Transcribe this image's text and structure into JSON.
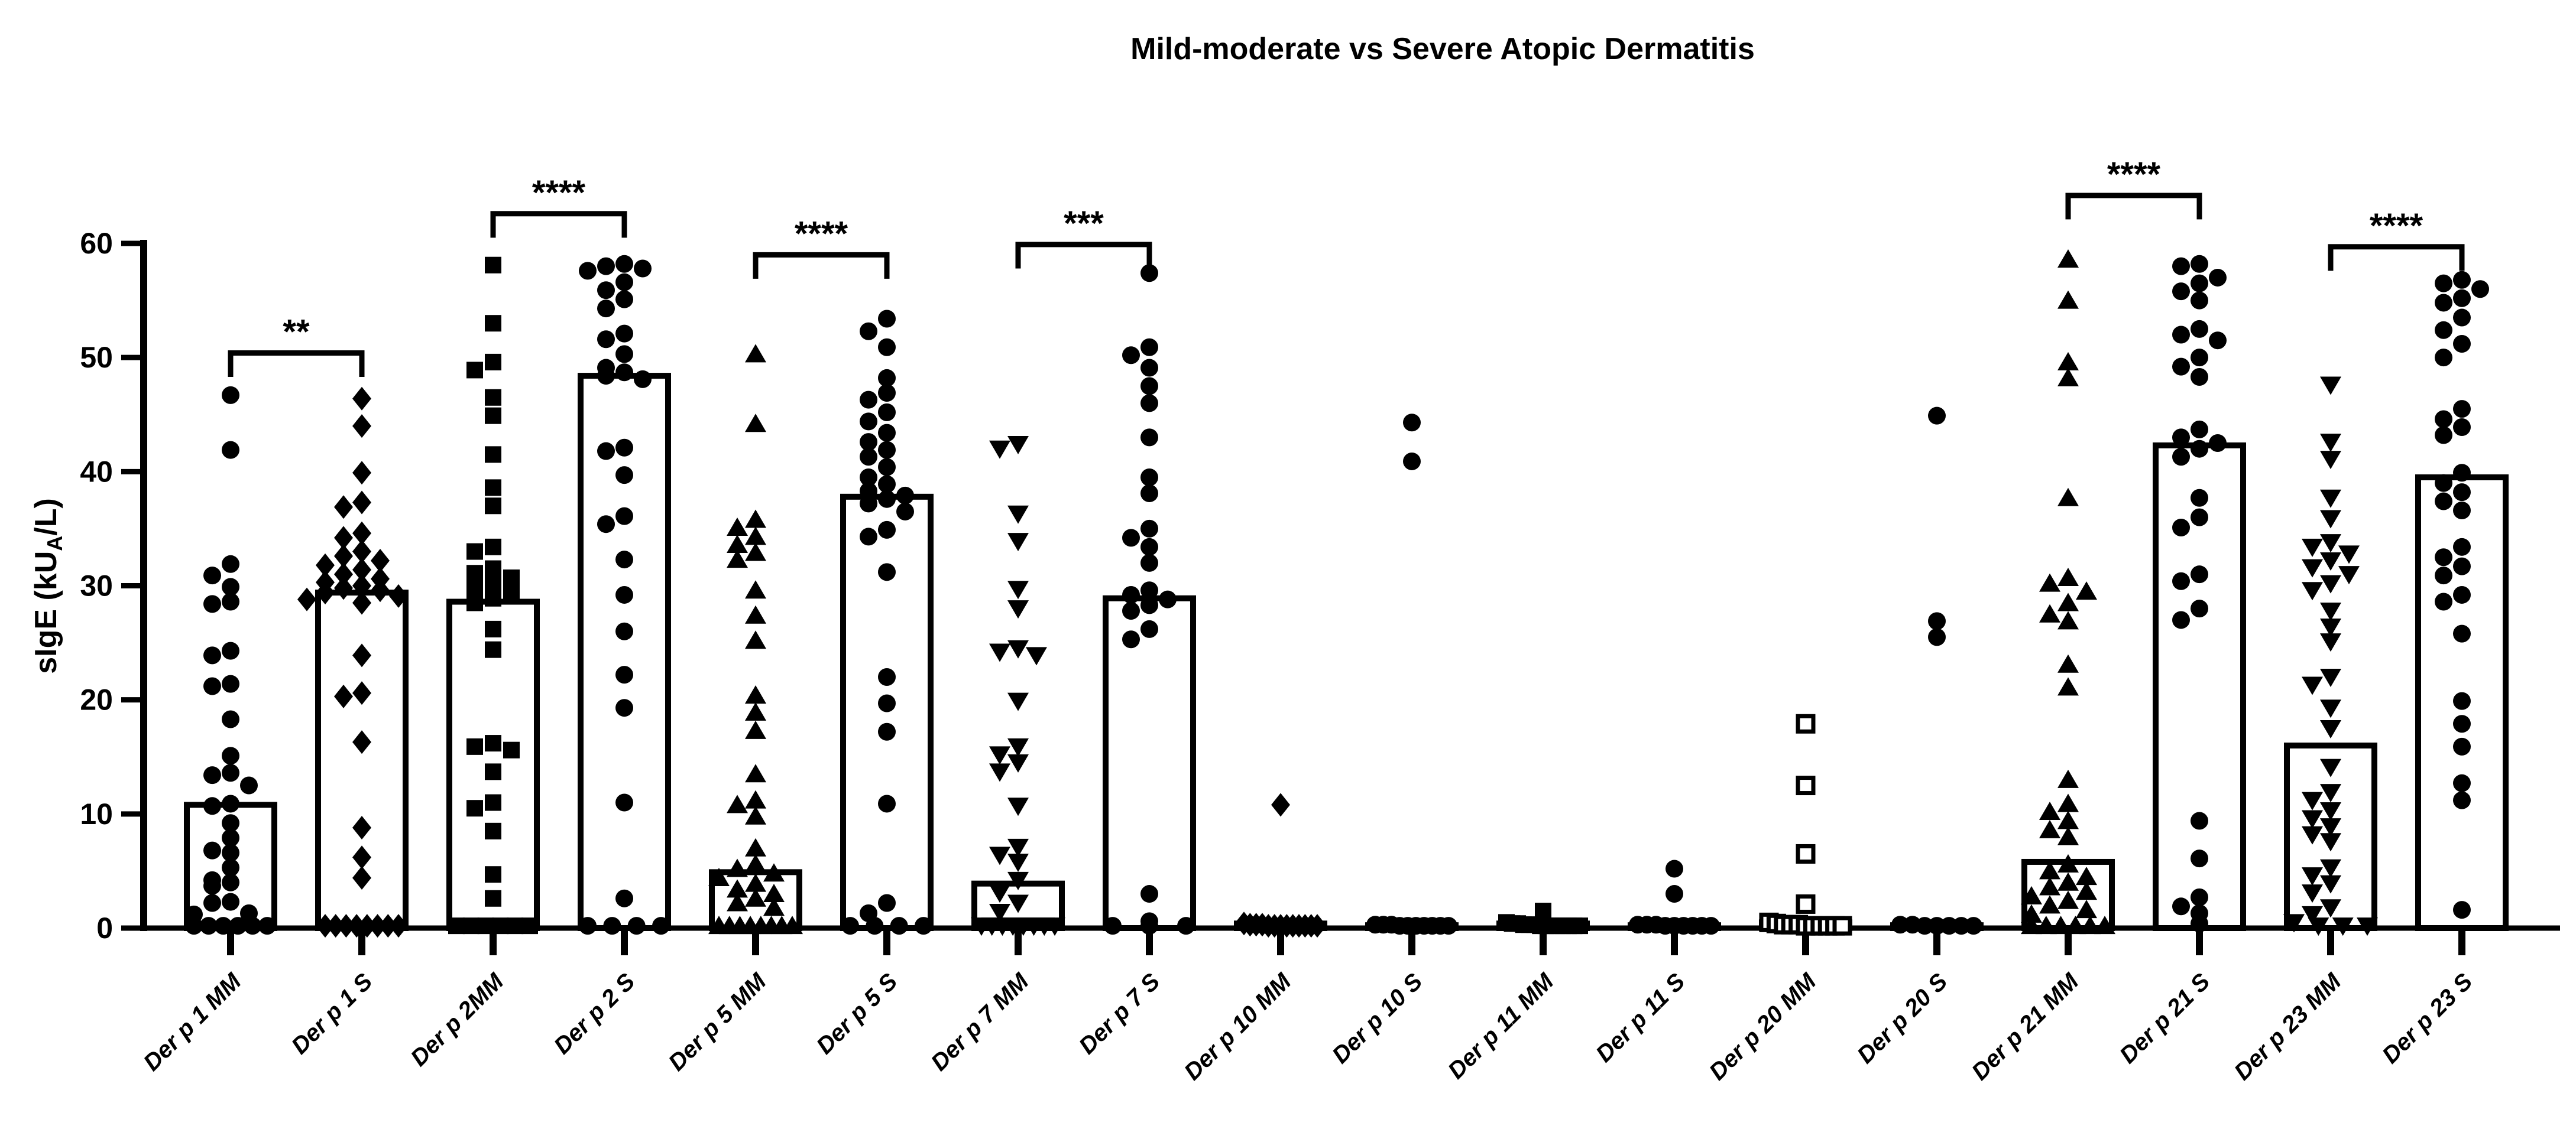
{
  "figure": {
    "background": "#ffffff",
    "ink": "#000000"
  },
  "chart_data": {
    "type": "bar",
    "subtype": "bar-with-scatter-overlay",
    "title": "Mild-moderate vs Severe Atopic Dermatitis",
    "xlabel": "",
    "ylabel": "sIgE (kUA/L)",
    "ylabel_parts": {
      "pre": "sIgE (kU",
      "sub": "A",
      "post": "/L)"
    },
    "ylim": [
      0,
      60
    ],
    "yticks": [
      0,
      10,
      20,
      30,
      40,
      50,
      60
    ],
    "grid": false,
    "legend": "none",
    "bar_fill": "#ffffff",
    "bar_stroke": "#000000",
    "categories": [
      "Der p 1 MM",
      "Der p 1 S",
      "Der p 2MM",
      "Der p 2 S",
      "Der p 5 MM",
      "Der p 5 S",
      "Der p 7 MM",
      "Der p 7 S",
      "Der p 10 MM",
      "Der p 10 S",
      "Der p 11 MM",
      "Der p 11 S",
      "Der p 20 MM",
      "Der p 20 S",
      "Der p 21 MM",
      "Der p 21 S",
      "Der p 23 MM",
      "Der p 23 S"
    ],
    "series": [
      {
        "category": "Der p 1 MM",
        "marker": "circle",
        "bar_mean": 10.8,
        "points": [
          46.7,
          41.9,
          31.9,
          30.9,
          29.9,
          28.6,
          28.4,
          24.3,
          23.9,
          21.4,
          21.2,
          18.3,
          15.1,
          13.6,
          13.4,
          12.5,
          10.9,
          10.7,
          9.2,
          7.9,
          6.8,
          6.6,
          5.3,
          4.2,
          4.0,
          3.7,
          2.3,
          2.2,
          1.3,
          1.2,
          0.2,
          0.2,
          0.2,
          0.2,
          0.2,
          0.2
        ]
      },
      {
        "category": "Der p 1 S",
        "marker": "diamond",
        "bar_mean": 29.4,
        "points": [
          46.4,
          44.0,
          39.9,
          37.3,
          36.9,
          34.6,
          34.2,
          33.0,
          32.6,
          32.2,
          31.8,
          31.4,
          31.0,
          30.6,
          30.3,
          30.0,
          29.8,
          29.6,
          29.4,
          29.1,
          28.8,
          28.5,
          23.9,
          20.6,
          20.3,
          16.3,
          8.8,
          6.2,
          4.4,
          0.2,
          0.2,
          0.2,
          0.2,
          0.2,
          0.2,
          0.2,
          0.2
        ]
      },
      {
        "category": "Der p 2MM",
        "marker": "square",
        "bar_mean": 28.6,
        "points": [
          58.1,
          53.0,
          49.6,
          48.9,
          46.5,
          44.9,
          41.5,
          38.6,
          37.0,
          33.4,
          33.0,
          31.5,
          31.1,
          30.7,
          30.2,
          29.8,
          29.3,
          28.9,
          28.5,
          26.2,
          24.4,
          16.2,
          15.9,
          15.6,
          13.7,
          11.0,
          10.5,
          8.5,
          4.7,
          2.6,
          0.2,
          0.2,
          0.2,
          0.2,
          0.2,
          0.2
        ]
      },
      {
        "category": "Der p 2 S",
        "marker": "circle",
        "bar_mean": 48.4,
        "points": [
          58.2,
          58.0,
          57.8,
          57.6,
          56.6,
          55.9,
          55.1,
          54.3,
          52.1,
          51.6,
          50.3,
          49.1,
          48.7,
          48.4,
          48.1,
          42.1,
          41.8,
          39.7,
          36.1,
          35.4,
          32.3,
          29.2,
          26.0,
          22.2,
          19.3,
          11.0,
          2.6,
          0.2,
          0.2,
          0.2,
          0.2
        ]
      },
      {
        "category": "Der p 5 MM",
        "marker": "triangle-up",
        "bar_mean": 4.9,
        "points": [
          50.3,
          44.2,
          35.8,
          35.1,
          34.3,
          33.6,
          32.9,
          32.3,
          29.6,
          27.4,
          25.2,
          20.4,
          18.9,
          17.3,
          13.5,
          11.2,
          10.8,
          9.8,
          7.0,
          5.6,
          5.2,
          4.8,
          4.4,
          3.9,
          3.4,
          3.0,
          2.6,
          2.2,
          1.8,
          0.2,
          0.2,
          0.2,
          0.2,
          0.2,
          0.2,
          0.2,
          0.2
        ]
      },
      {
        "category": "Der p 5 S",
        "marker": "circle",
        "bar_mean": 37.8,
        "points": [
          53.4,
          52.3,
          50.9,
          48.2,
          46.9,
          46.3,
          45.2,
          44.4,
          43.4,
          42.6,
          41.9,
          41.3,
          40.4,
          39.5,
          38.9,
          38.3,
          37.9,
          37.6,
          37.2,
          36.5,
          34.9,
          34.3,
          31.2,
          22.0,
          19.7,
          17.2,
          10.9,
          2.2,
          1.3,
          0.2,
          0.2,
          0.2,
          0.2
        ]
      },
      {
        "category": "Der p 7 MM",
        "marker": "triangle-down",
        "bar_mean": 3.9,
        "points": [
          42.4,
          42.0,
          36.3,
          33.9,
          29.7,
          28.0,
          24.5,
          24.2,
          23.9,
          19.9,
          15.9,
          15.2,
          14.5,
          13.7,
          10.7,
          7.1,
          6.4,
          5.8,
          4.2,
          3.1,
          2.2,
          1.4,
          0.2,
          0.2,
          0.2,
          0.2,
          0.2,
          0.2,
          0.2,
          0.2
        ]
      },
      {
        "category": "Der p 7 S",
        "marker": "circle",
        "bar_mean": 28.9,
        "points": [
          57.4,
          50.9,
          50.2,
          49.1,
          47.5,
          46.0,
          43.0,
          39.5,
          38.1,
          35.0,
          34.2,
          33.4,
          32.0,
          29.6,
          29.2,
          28.8,
          28.3,
          27.8,
          26.2,
          25.3,
          3.0,
          0.6,
          0.2,
          0.2,
          0.2
        ]
      },
      {
        "category": "Der p 10 MM",
        "marker": "diamond",
        "bar_mean": 0.4,
        "points": [
          10.8,
          0.4,
          0.3,
          0.3,
          0.3,
          0.2,
          0.2,
          0.2,
          0.2,
          0.2,
          0.2,
          0.2,
          0.2,
          0.2
        ]
      },
      {
        "category": "Der p 10 S",
        "marker": "circle",
        "bar_mean": 0.25,
        "points": [
          44.3,
          40.9,
          0.3,
          0.3,
          0.3,
          0.2,
          0.2,
          0.2,
          0.2,
          0.2,
          0.2,
          0.2
        ]
      },
      {
        "category": "Der p 11 MM",
        "marker": "square",
        "bar_mean": 0.4,
        "points": [
          1.5,
          0.5,
          0.4,
          0.4,
          0.3,
          0.3,
          0.3,
          0.2,
          0.2,
          0.2,
          0.2,
          0.2,
          0.2,
          0.2,
          0.2
        ]
      },
      {
        "category": "Der p 11 S",
        "marker": "circle",
        "bar_mean": 0.25,
        "points": [
          5.2,
          3.0,
          0.3,
          0.3,
          0.3,
          0.2,
          0.2,
          0.2,
          0.2,
          0.2,
          0.2
        ]
      },
      {
        "category": "Der p 20 MM",
        "marker": "square-open",
        "bar_mean": 0.5,
        "points": [
          17.9,
          12.5,
          6.5,
          2.1,
          0.5,
          0.4,
          0.3,
          0.3,
          0.3,
          0.2,
          0.2,
          0.2,
          0.2,
          0.2,
          0.2
        ]
      },
      {
        "category": "Der p 20 S",
        "marker": "circle",
        "bar_mean": 0.25,
        "points": [
          44.9,
          26.9,
          25.5,
          0.3,
          0.3,
          0.2,
          0.2,
          0.2,
          0.2,
          0.2
        ]
      },
      {
        "category": "Der p 21 MM",
        "marker": "triangle-up",
        "bar_mean": 5.8,
        "points": [
          58.6,
          55.0,
          49.6,
          48.2,
          37.7,
          30.7,
          30.2,
          29.5,
          28.5,
          27.5,
          26.9,
          23.1,
          21.1,
          13.0,
          10.9,
          10.2,
          9.4,
          8.6,
          8.0,
          5.6,
          5.0,
          4.5,
          4.0,
          3.6,
          3.2,
          2.8,
          2.4,
          2.0,
          1.6,
          1.2,
          0.2,
          0.2,
          0.2,
          0.2,
          0.2,
          0.2
        ]
      },
      {
        "category": "Der p 21 S",
        "marker": "circle",
        "bar_mean": 42.3,
        "points": [
          58.2,
          58.0,
          57.0,
          56.5,
          55.8,
          55.0,
          52.5,
          52.0,
          51.5,
          50.0,
          49.2,
          48.3,
          43.7,
          43.0,
          42.5,
          42.0,
          41.3,
          37.7,
          36.0,
          35.1,
          31.0,
          30.4,
          28.0,
          27.0,
          9.4,
          6.1,
          2.7,
          1.9,
          1.3,
          0.4
        ]
      },
      {
        "category": "Der p 23 MM",
        "marker": "triangle-down",
        "bar_mean": 16.0,
        "points": [
          47.6,
          42.6,
          41.1,
          37.7,
          35.9,
          33.8,
          33.4,
          32.8,
          32.2,
          31.6,
          31.0,
          30.2,
          29.6,
          27.8,
          26.4,
          25.1,
          22.0,
          21.3,
          19.3,
          17.5,
          14.1,
          11.9,
          11.2,
          10.3,
          9.6,
          8.9,
          8.2,
          7.6,
          5.3,
          4.6,
          3.9,
          3.1,
          1.8,
          1.2,
          0.5,
          0.2,
          0.2,
          0.2
        ]
      },
      {
        "category": "Der p 23 S",
        "marker": "circle",
        "bar_mean": 39.5,
        "points": [
          56.8,
          56.5,
          56.0,
          55.2,
          54.8,
          53.5,
          52.4,
          51.2,
          50.0,
          45.5,
          44.6,
          43.9,
          43.2,
          39.9,
          39.0,
          38.2,
          37.4,
          36.6,
          33.4,
          32.5,
          31.7,
          30.9,
          29.2,
          28.6,
          25.8,
          19.9,
          17.9,
          15.9,
          12.7,
          11.2,
          1.6
        ]
      }
    ],
    "significance": [
      {
        "groups": [
          0,
          1
        ],
        "label": "**",
        "y": 50.4
      },
      {
        "groups": [
          2,
          3
        ],
        "label": "****",
        "y": 62.6
      },
      {
        "groups": [
          4,
          5
        ],
        "label": "****",
        "y": 59.0
      },
      {
        "groups": [
          6,
          7
        ],
        "label": "***",
        "y": 59.9
      },
      {
        "groups": [
          14,
          15
        ],
        "label": "****",
        "y": 64.2
      },
      {
        "groups": [
          16,
          17
        ],
        "label": "****",
        "y": 59.7
      }
    ]
  }
}
